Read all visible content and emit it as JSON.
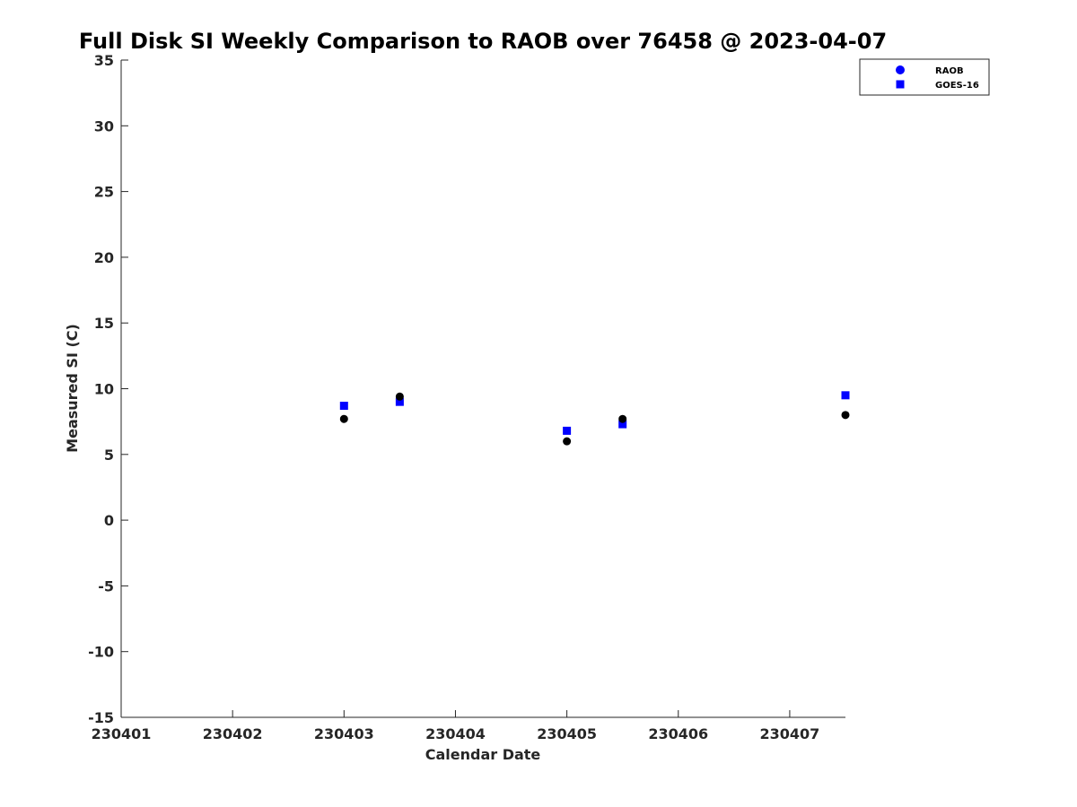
{
  "chart_data": {
    "type": "scatter",
    "title": "Full Disk SI Weekly Comparison to RAOB over 76458 @ 2023-04-07",
    "xlabel": "Calendar Date",
    "ylabel": "Measured SI (C)",
    "xlim": [
      1,
      7.5
    ],
    "ylim": [
      -15,
      35
    ],
    "x_ticks": [
      {
        "value": 1,
        "label": "230401"
      },
      {
        "value": 2,
        "label": "230402"
      },
      {
        "value": 3,
        "label": "230403"
      },
      {
        "value": 4,
        "label": "230404"
      },
      {
        "value": 5,
        "label": "230405"
      },
      {
        "value": 6,
        "label": "230406"
      },
      {
        "value": 7,
        "label": "230407"
      }
    ],
    "y_ticks": [
      35,
      30,
      25,
      20,
      15,
      10,
      5,
      0,
      -5,
      -10,
      -15
    ],
    "grid": false,
    "legend_position": "top-right",
    "series": [
      {
        "name": "RAOB",
        "marker": "circle",
        "legend_color": "#0000ff",
        "color": "#000000",
        "x": [
          3.0,
          3.5,
          5.0,
          5.5,
          7.5
        ],
        "y": [
          7.7,
          9.4,
          6.0,
          7.7,
          8.0
        ]
      },
      {
        "name": "GOES-16",
        "marker": "square",
        "color": "#0000ff",
        "x": [
          3.0,
          3.5,
          5.0,
          5.5,
          7.5
        ],
        "y": [
          8.7,
          9.0,
          6.8,
          7.3,
          9.5
        ]
      }
    ]
  }
}
